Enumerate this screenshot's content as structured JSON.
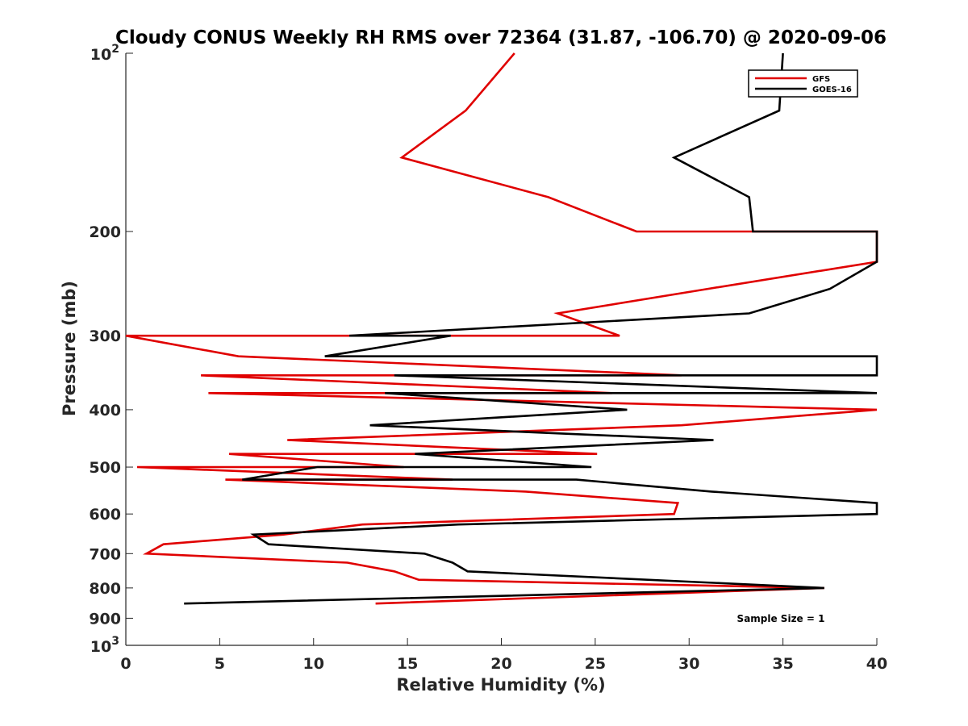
{
  "chart_data": {
    "type": "line",
    "title": "Cloudy CONUS Weekly RH RMS over 72364 (31.87, -106.70) @ 2020-09-06",
    "xlabel": "Relative Humidity (%)",
    "ylabel": "Pressure (mb)",
    "xlim": [
      0,
      40
    ],
    "ylim": [
      100,
      1000
    ],
    "y_scale": "log",
    "y_reversed": true,
    "grid": false,
    "legend_position": "top-right",
    "x_ticks": [
      {
        "value": 0,
        "label": "0"
      },
      {
        "value": 5,
        "label": "5"
      },
      {
        "value": 10,
        "label": "10"
      },
      {
        "value": 15,
        "label": "15"
      },
      {
        "value": 20,
        "label": "20"
      },
      {
        "value": 25,
        "label": "25"
      },
      {
        "value": 30,
        "label": "30"
      },
      {
        "value": 35,
        "label": "35"
      },
      {
        "value": 40,
        "label": "40"
      }
    ],
    "y_ticks": [
      {
        "value": 100,
        "base": "10",
        "exp": "2"
      },
      {
        "value": 200,
        "label": "200"
      },
      {
        "value": 300,
        "label": "300"
      },
      {
        "value": 400,
        "label": "400"
      },
      {
        "value": 500,
        "label": "500"
      },
      {
        "value": 600,
        "label": "600"
      },
      {
        "value": 700,
        "label": "700"
      },
      {
        "value": 800,
        "label": "800"
      },
      {
        "value": 900,
        "label": "900"
      },
      {
        "value": 1000,
        "base": "10",
        "exp": "3"
      }
    ],
    "annotation": "Sample Size = 1",
    "series": [
      {
        "name": "GFS",
        "color": "#e00000",
        "points": [
          [
            20.7,
            100
          ],
          [
            18.1,
            125
          ],
          [
            14.7,
            150
          ],
          [
            22.5,
            175
          ],
          [
            27.2,
            200
          ],
          [
            40.0,
            200
          ],
          [
            40.0,
            225
          ],
          [
            31.0,
            250
          ],
          [
            23.0,
            275
          ],
          [
            26.3,
            300
          ],
          [
            0.0,
            300
          ],
          [
            6.0,
            325
          ],
          [
            29.6,
            350
          ],
          [
            4.0,
            350
          ],
          [
            25.9,
            375
          ],
          [
            4.4,
            375
          ],
          [
            40.0,
            400
          ],
          [
            29.6,
            425
          ],
          [
            8.6,
            450
          ],
          [
            25.1,
            475
          ],
          [
            5.5,
            475
          ],
          [
            14.8,
            500
          ],
          [
            0.6,
            500
          ],
          [
            17.4,
            525
          ],
          [
            5.3,
            525
          ],
          [
            21.3,
            550
          ],
          [
            29.4,
            575
          ],
          [
            29.2,
            600
          ],
          [
            12.6,
            625
          ],
          [
            8.4,
            650
          ],
          [
            2.0,
            675
          ],
          [
            1.1,
            700
          ],
          [
            11.8,
            725
          ],
          [
            14.3,
            750
          ],
          [
            15.6,
            775
          ],
          [
            37.2,
            800
          ],
          [
            13.3,
            850
          ]
        ]
      },
      {
        "name": "GOES-16",
        "color": "#000000",
        "points": [
          [
            35.0,
            100
          ],
          [
            34.8,
            125
          ],
          [
            29.2,
            150
          ],
          [
            33.2,
            175
          ],
          [
            33.4,
            200
          ],
          [
            40.0,
            200
          ],
          [
            40.0,
            225
          ],
          [
            37.5,
            250
          ],
          [
            33.2,
            275
          ],
          [
            11.9,
            300
          ],
          [
            17.3,
            300
          ],
          [
            10.6,
            325
          ],
          [
            40.0,
            325
          ],
          [
            40.0,
            350
          ],
          [
            14.3,
            350
          ],
          [
            40.0,
            375
          ],
          [
            40.0,
            375
          ],
          [
            13.8,
            375
          ],
          [
            26.7,
            400
          ],
          [
            13.0,
            425
          ],
          [
            31.3,
            450
          ],
          [
            15.4,
            475
          ],
          [
            24.8,
            500
          ],
          [
            10.2,
            500
          ],
          [
            6.2,
            525
          ],
          [
            24.0,
            525
          ],
          [
            31.2,
            550
          ],
          [
            40.0,
            575
          ],
          [
            40.0,
            600
          ],
          [
            17.7,
            625
          ],
          [
            6.8,
            650
          ],
          [
            7.6,
            675
          ],
          [
            15.9,
            700
          ],
          [
            17.4,
            725
          ],
          [
            18.2,
            750
          ],
          [
            37.2,
            800
          ],
          [
            3.1,
            850
          ]
        ]
      }
    ]
  }
}
